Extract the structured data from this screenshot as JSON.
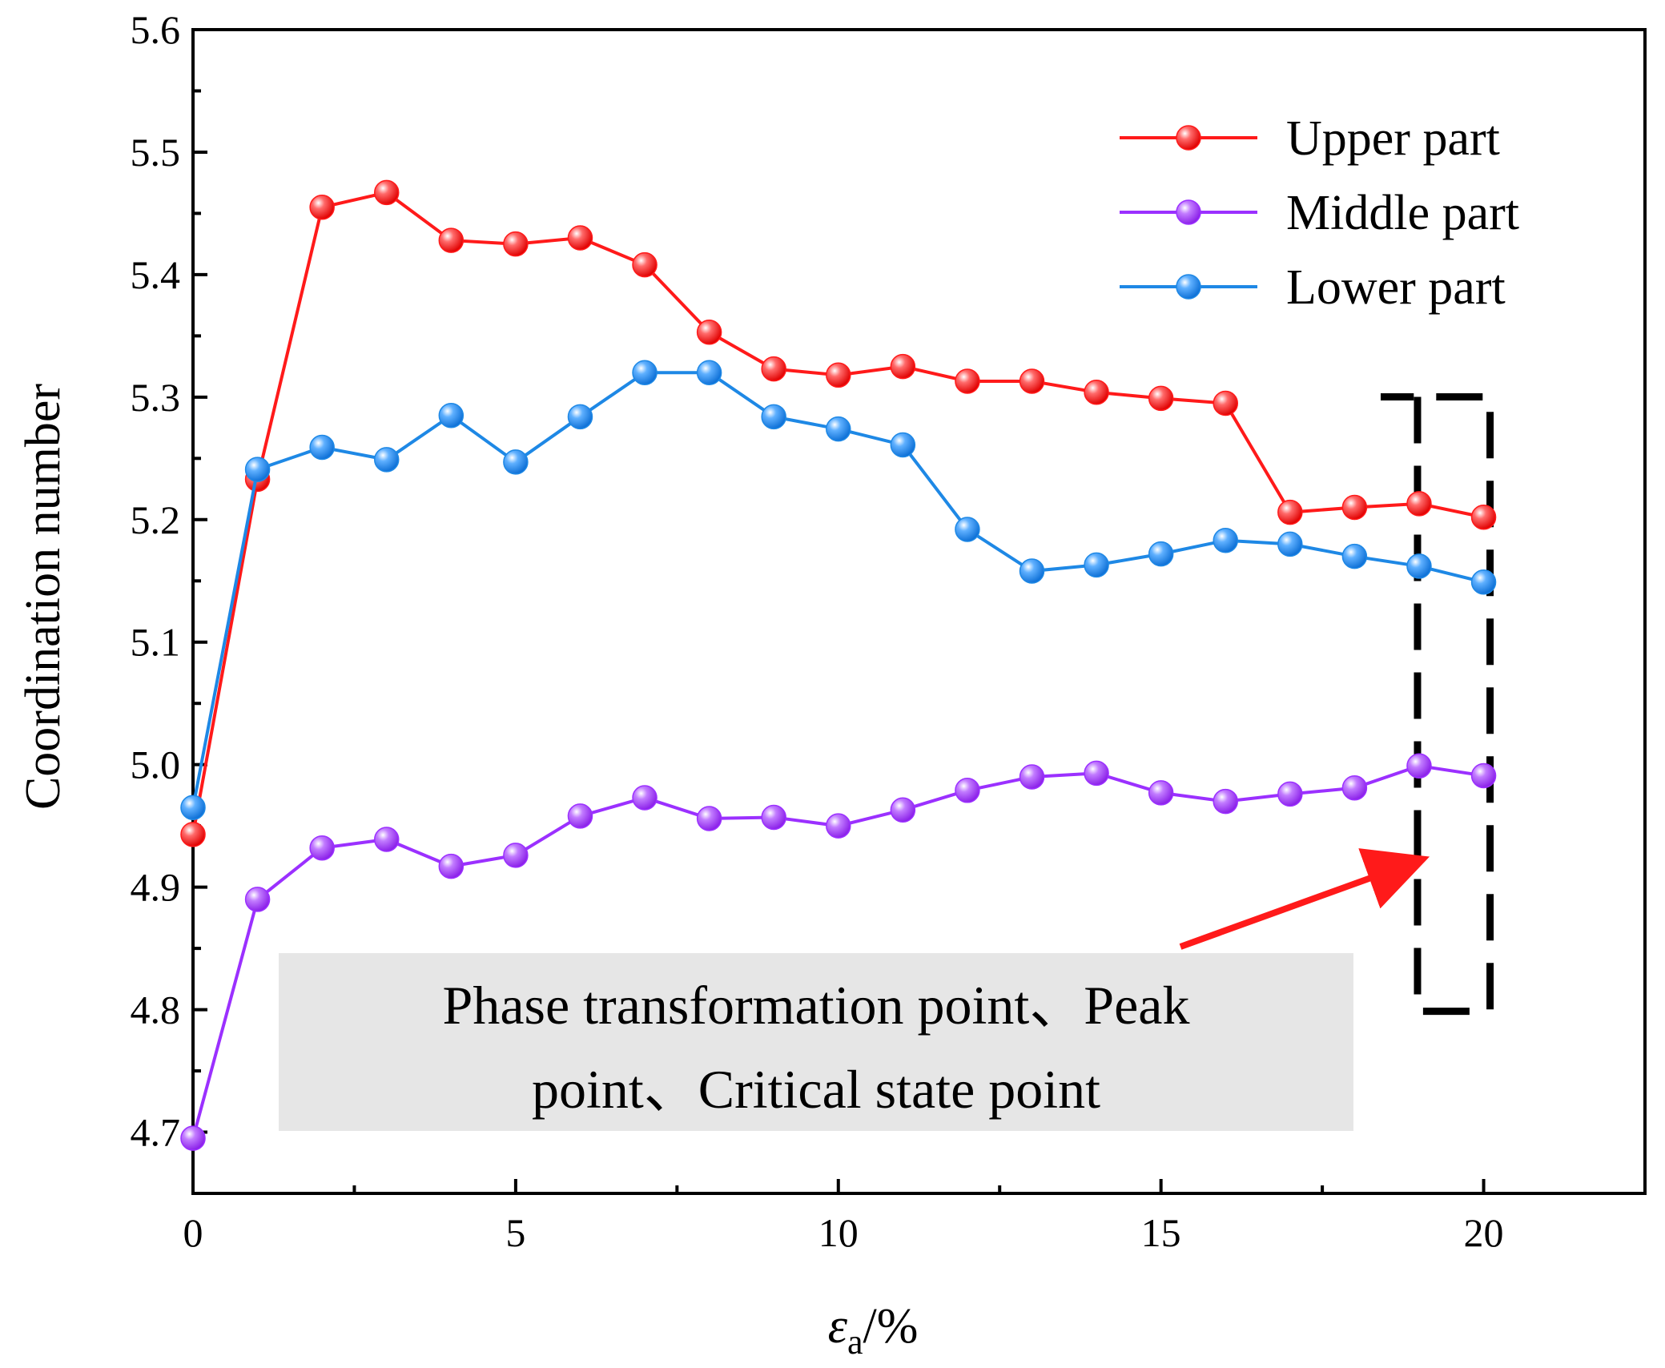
{
  "chart_data": {
    "type": "line",
    "title": "",
    "xlabel": "εa/%",
    "xlabel_main": "ε",
    "xlabel_sub": "a",
    "xlabel_tail": "/%",
    "ylabel": "Coordination number",
    "xlim": [
      0,
      22.5
    ],
    "ylim": [
      4.65,
      5.6
    ],
    "xticks": [
      0,
      5,
      10,
      15,
      20
    ],
    "xtick_labels": [
      "0",
      "5",
      "10",
      "15",
      "20"
    ],
    "yticks": [
      4.7,
      4.8,
      4.9,
      5.0,
      5.1,
      5.2,
      5.3,
      5.4,
      5.5,
      5.6
    ],
    "ytick_labels": [
      "4.7",
      "4.8",
      "4.9",
      "5.0",
      "5.1",
      "5.2",
      "5.3",
      "5.4",
      "5.5",
      "5.6"
    ],
    "legend_position": "top-right",
    "x": [
      0,
      1,
      2,
      3,
      4,
      5,
      6,
      7,
      8,
      9,
      10,
      11,
      12,
      13,
      14,
      15,
      16,
      17,
      18,
      19,
      20
    ],
    "series": [
      {
        "name": "Upper part",
        "color": "#ff1a1a",
        "values": [
          4.943,
          5.233,
          5.455,
          5.467,
          5.428,
          5.425,
          5.43,
          5.408,
          5.353,
          5.323,
          5.318,
          5.325,
          5.313,
          5.313,
          5.304,
          5.299,
          5.295,
          5.206,
          5.21,
          5.213,
          5.202
        ]
      },
      {
        "name": "Middle part",
        "color": "#9b30ff",
        "values": [
          4.695,
          4.89,
          4.932,
          4.939,
          4.917,
          4.926,
          4.958,
          4.973,
          4.956,
          4.957,
          4.95,
          4.963,
          4.979,
          4.99,
          4.993,
          4.977,
          4.97,
          4.976,
          4.981,
          4.999,
          4.991
        ]
      },
      {
        "name": "Lower part",
        "color": "#1e88e5",
        "values": [
          4.965,
          5.241,
          5.259,
          5.249,
          5.285,
          5.247,
          5.284,
          5.32,
          5.32,
          5.284,
          5.274,
          5.261,
          5.192,
          5.158,
          5.163,
          5.172,
          5.183,
          5.18,
          5.17,
          5.162,
          5.149
        ]
      }
    ],
    "annotation": {
      "line1": "Phase transformation point、Peak",
      "line2": "point、Critical state point",
      "box_color": "#e6e6e6",
      "arrow_color": "#ff1a1a",
      "highlight_x_range": [
        19,
        20
      ],
      "highlight_y_range": [
        4.8,
        5.295
      ]
    }
  }
}
